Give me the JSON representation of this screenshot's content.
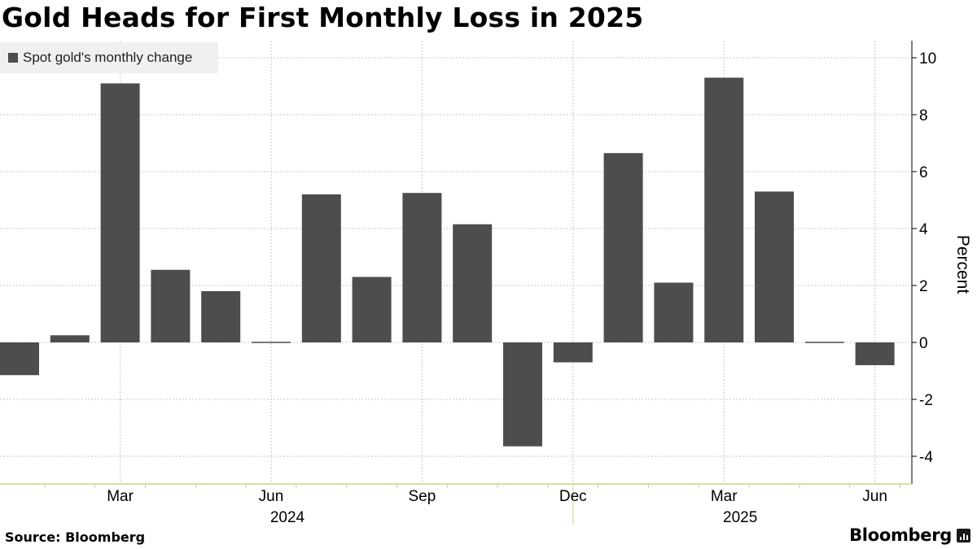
{
  "chart_data": {
    "type": "bar",
    "title": "Gold Heads for First Monthly Loss in 2025",
    "legend": {
      "entries": [
        "Spot gold's monthly change"
      ],
      "placement": "top-left"
    },
    "ylabel": "Percent",
    "ylim": [
      -5,
      10.5
    ],
    "y_ticks": [
      10,
      8,
      6,
      4,
      2,
      0,
      -2,
      -4
    ],
    "y_axis_side": "right",
    "grid": true,
    "color": "#4d4d4d",
    "categories": [
      "2024-01",
      "2024-02",
      "2024-03",
      "2024-04",
      "2024-05",
      "2024-06",
      "2024-07",
      "2024-08",
      "2024-09",
      "2024-10",
      "2024-11",
      "2024-12",
      "2025-01",
      "2025-02",
      "2025-03",
      "2025-04",
      "2025-05",
      "2025-06"
    ],
    "series": [
      {
        "name": "Spot gold's monthly change",
        "values": [
          -1.15,
          0.25,
          9.1,
          2.55,
          1.8,
          0.0,
          5.2,
          2.3,
          5.25,
          4.15,
          -3.65,
          -0.7,
          6.65,
          2.1,
          9.3,
          5.3,
          0.0,
          -0.8
        ]
      }
    ],
    "x_tick_labels": [
      {
        "category": "2024-03",
        "label": "Mar"
      },
      {
        "category": "2024-06",
        "label": "Jun"
      },
      {
        "category": "2024-09",
        "label": "Sep"
      },
      {
        "category": "2024-12",
        "label": "Dec"
      },
      {
        "category": "2025-03",
        "label": "Mar"
      },
      {
        "category": "2025-06",
        "label": "Jun"
      }
    ],
    "year_labels": [
      {
        "category": "2024-06",
        "label": "2024"
      },
      {
        "category": "2025-03",
        "label": "2025"
      }
    ]
  },
  "footer": {
    "source": "Source: Bloomberg",
    "brand": "Bloomberg"
  },
  "colors": {
    "bar": "#4d4d4d",
    "grid": "#c8c8c8",
    "axis": "#c5d88a"
  }
}
